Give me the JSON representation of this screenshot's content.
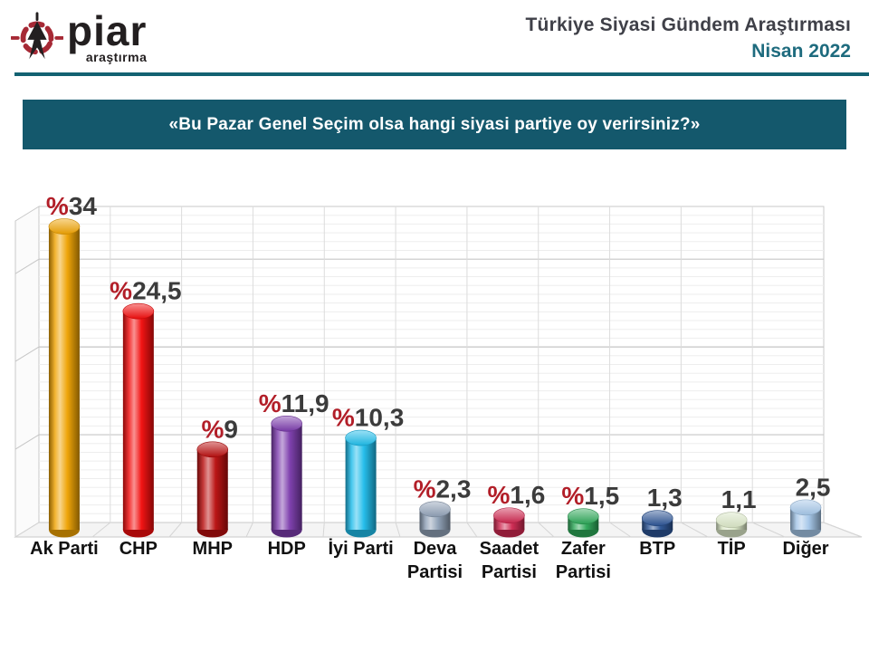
{
  "header": {
    "logo": {
      "text": "piar",
      "subtext": "araştırma",
      "icon_red": "#A62935",
      "icon_black": "#231F20",
      "text_color": "#231F20"
    },
    "title": "Türkiye Siyasi Gündem Araştırması",
    "subtitle": "Nisan 2022",
    "title_color": "#3F4048",
    "subtitle_color": "#1E6B7E",
    "divider_color": "#136272"
  },
  "banner": {
    "text": "«Bu Pazar Genel Seçim olsa hangi siyasi partiye oy verirsiniz?»",
    "bg": "#14586C",
    "fg": "#FFFFFF"
  },
  "chart_data": {
    "type": "bar",
    "subtype": "3d-cylinder",
    "title": "",
    "xlabel": "",
    "ylabel": "",
    "ylim": [
      0,
      36
    ],
    "grid": true,
    "legend": false,
    "percent_sign_color": "#B21E28",
    "number_color": "#3B3B3B",
    "category_label_color": "#111111",
    "categories": [
      "Ak Parti",
      "CHP",
      "MHP",
      "HDP",
      "İyi Parti",
      "Deva Partisi",
      "Saadet Partisi",
      "Zafer Partisi",
      "BTP",
      "TİP",
      "Diğer"
    ],
    "values": [
      34,
      24.5,
      9,
      11.9,
      10.3,
      2.3,
      1.6,
      1.5,
      1.3,
      1.1,
      2.5
    ],
    "points": [
      {
        "category": "Ak Parti",
        "label_lines": [
          "Ak Parti"
        ],
        "value": 34,
        "value_prefix": "%",
        "value_text": "34",
        "color": "#EFA202"
      },
      {
        "category": "CHP",
        "label_lines": [
          "CHP"
        ],
        "value": 24.5,
        "value_prefix": "%",
        "value_text": "24,5",
        "color": "#F20D0D"
      },
      {
        "category": "MHP",
        "label_lines": [
          "MHP"
        ],
        "value": 9,
        "value_prefix": "%",
        "value_text": "9",
        "color": "#B90F0F"
      },
      {
        "category": "HDP",
        "label_lines": [
          "HDP"
        ],
        "value": 11.9,
        "value_prefix": "%",
        "value_text": "11,9",
        "color": "#7C3CAD"
      },
      {
        "category": "İyi Parti",
        "label_lines": [
          "İyi Parti"
        ],
        "value": 10.3,
        "value_prefix": "%",
        "value_text": "10,3",
        "color": "#1FBCEA"
      },
      {
        "category": "Deva Partisi",
        "label_lines": [
          "Deva",
          "Partisi"
        ],
        "value": 2.3,
        "value_prefix": "%",
        "value_text": "2,3",
        "color": "#8FA0B6"
      },
      {
        "category": "Saadet Partisi",
        "label_lines": [
          "Saadet",
          "Partisi"
        ],
        "value": 1.6,
        "value_prefix": "%",
        "value_text": "1,6",
        "color": "#CE2850"
      },
      {
        "category": "Zafer Partisi",
        "label_lines": [
          "Zafer",
          "Partisi"
        ],
        "value": 1.5,
        "value_prefix": "%",
        "value_text": "1,5",
        "color": "#2EA859"
      },
      {
        "category": "BTP",
        "label_lines": [
          "BTP"
        ],
        "value": 1.3,
        "value_prefix": "",
        "value_text": "1,3",
        "color": "#2C5494"
      },
      {
        "category": "TİP",
        "label_lines": [
          "TİP"
        ],
        "value": 1.1,
        "value_prefix": "",
        "value_text": "1,1",
        "color": "#DAE7C6"
      },
      {
        "category": "Diğer",
        "label_lines": [
          "Diğer"
        ],
        "value": 2.5,
        "value_prefix": "",
        "value_text": "2,5",
        "color": "#A4C6E8"
      }
    ]
  }
}
